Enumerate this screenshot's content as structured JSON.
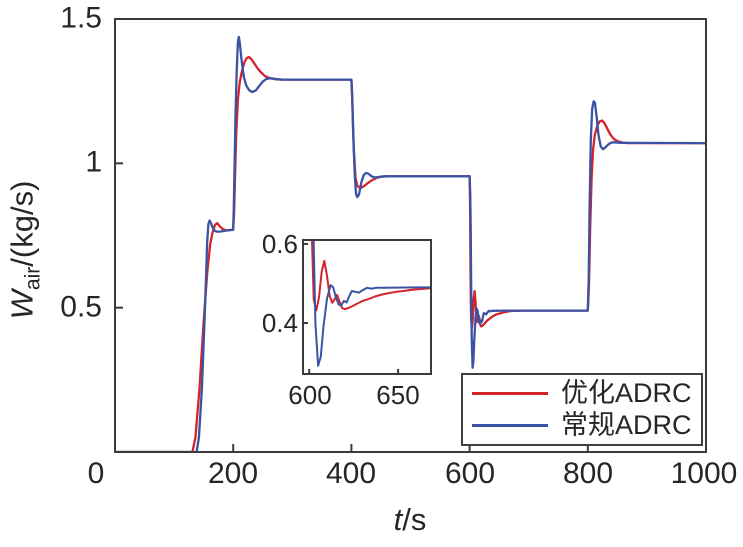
{
  "figure": {
    "xlabel": {
      "symbol": "t",
      "rest": "/s"
    },
    "ylabel": {
      "symbol": "W",
      "sub": "air",
      "rest": "/(kg/s)"
    },
    "x_ticks_display": [
      "0",
      "200",
      "400",
      "600",
      "800",
      "1000"
    ],
    "y_ticks_display": [
      "1.5",
      "1",
      "0.5"
    ],
    "frame_color": "#3b3b3b",
    "text_color": "#262626",
    "background": "#ffffff"
  },
  "inset_labels": {
    "x_ticks_display": [
      "600",
      "650"
    ],
    "y_ticks_display": [
      "0.6",
      "0.4"
    ]
  },
  "legend": {
    "items": [
      {
        "label": "优化ADRC",
        "color": "#d3242c"
      },
      {
        "label": "常规ADRC",
        "color": "#3a53a4"
      }
    ]
  },
  "chart_data": {
    "type": "line",
    "title": "",
    "xlabel": "t/s",
    "ylabel": "W_air/(kg/s)",
    "xlim": [
      0,
      1000
    ],
    "ylim": [
      0,
      1.5
    ],
    "x_ticks": [
      0,
      200,
      400,
      600,
      800,
      1000
    ],
    "y_ticks": [
      0.5,
      1,
      1.5
    ],
    "grid": false,
    "legend_position": "lower right",
    "inset": {
      "description": "zoomed view of the t=600 step response",
      "xlim": [
        596.5,
        668.5
      ],
      "ylim": [
        0.271,
        0.61
      ],
      "x_ticks": [
        600,
        650
      ],
      "y_ticks": [
        0.4,
        0.6
      ]
    },
    "series": [
      {
        "name": "优化ADRC",
        "color": "#d3242c",
        "points": [
          [
            0,
            0
          ],
          [
            131,
            0
          ],
          [
            136,
            0.05
          ],
          [
            143,
            0.22
          ],
          [
            150,
            0.45
          ],
          [
            156,
            0.62
          ],
          [
            161,
            0.72
          ],
          [
            165,
            0.76
          ],
          [
            169,
            0.786
          ],
          [
            173,
            0.793
          ],
          [
            177,
            0.783
          ],
          [
            182,
            0.772
          ],
          [
            188,
            0.768
          ],
          [
            194,
            0.769
          ],
          [
            200,
            0.77
          ],
          [
            201.5,
            0.83
          ],
          [
            203,
            0.95
          ],
          [
            205,
            1.1
          ],
          [
            208,
            1.22
          ],
          [
            211,
            1.28
          ],
          [
            215,
            1.322
          ],
          [
            219,
            1.35
          ],
          [
            223,
            1.365
          ],
          [
            227,
            1.368
          ],
          [
            231,
            1.36
          ],
          [
            236,
            1.345
          ],
          [
            241,
            1.33
          ],
          [
            247,
            1.315
          ],
          [
            254,
            1.302
          ],
          [
            262,
            1.295
          ],
          [
            272,
            1.291
          ],
          [
            285,
            1.29
          ],
          [
            400,
            1.29
          ],
          [
            401.5,
            1.22
          ],
          [
            404,
            1.05
          ],
          [
            407,
            0.95
          ],
          [
            410,
            0.922
          ],
          [
            413,
            0.917
          ],
          [
            417,
            0.916
          ],
          [
            422,
            0.922
          ],
          [
            428,
            0.932
          ],
          [
            435,
            0.942
          ],
          [
            443,
            0.95
          ],
          [
            452,
            0.954
          ],
          [
            462,
            0.955
          ],
          [
            600,
            0.955
          ],
          [
            600.8,
            0.85
          ],
          [
            601.5,
            0.62
          ],
          [
            602.5,
            0.46
          ],
          [
            604,
            0.432
          ],
          [
            605.5,
            0.465
          ],
          [
            607,
            0.53
          ],
          [
            608.5,
            0.557
          ],
          [
            610,
            0.52
          ],
          [
            611.5,
            0.468
          ],
          [
            613,
            0.451
          ],
          [
            614.5,
            0.462
          ],
          [
            615.7,
            0.471
          ],
          [
            617,
            0.455
          ],
          [
            618.5,
            0.438
          ],
          [
            620,
            0.435
          ],
          [
            622,
            0.438
          ],
          [
            624.5,
            0.443
          ],
          [
            627,
            0.449
          ],
          [
            630,
            0.456
          ],
          [
            633.5,
            0.461
          ],
          [
            637,
            0.467
          ],
          [
            641,
            0.472
          ],
          [
            645,
            0.476
          ],
          [
            649,
            0.479
          ],
          [
            653,
            0.481
          ],
          [
            658,
            0.484
          ],
          [
            663,
            0.486
          ],
          [
            668,
            0.488
          ],
          [
            676,
            0.489
          ],
          [
            690,
            0.49
          ],
          [
            800,
            0.49
          ],
          [
            802,
            0.58
          ],
          [
            804,
            0.78
          ],
          [
            806.5,
            0.95
          ],
          [
            809,
            1.05
          ],
          [
            812,
            1.1
          ],
          [
            816,
            1.13
          ],
          [
            820,
            1.145
          ],
          [
            824,
            1.148
          ],
          [
            828,
            1.14
          ],
          [
            833,
            1.12
          ],
          [
            838,
            1.1
          ],
          [
            844,
            1.085
          ],
          [
            850,
            1.077
          ],
          [
            858,
            1.072
          ],
          [
            868,
            1.07
          ],
          [
            1000,
            1.07
          ]
        ]
      },
      {
        "name": "常规ADRC",
        "color": "#3a53a4",
        "points": [
          [
            0,
            0
          ],
          [
            138,
            0
          ],
          [
            142,
            0.05
          ],
          [
            147,
            0.22
          ],
          [
            152,
            0.48
          ],
          [
            156,
            0.73
          ],
          [
            158,
            0.79
          ],
          [
            160,
            0.802
          ],
          [
            162,
            0.795
          ],
          [
            165,
            0.778
          ],
          [
            169,
            0.766
          ],
          [
            173,
            0.763
          ],
          [
            179,
            0.764
          ],
          [
            188,
            0.767
          ],
          [
            200,
            0.77
          ],
          [
            201,
            0.85
          ],
          [
            202.5,
            1.02
          ],
          [
            204,
            1.18
          ],
          [
            206,
            1.32
          ],
          [
            208,
            1.42
          ],
          [
            209.5,
            1.438
          ],
          [
            211,
            1.42
          ],
          [
            214,
            1.36
          ],
          [
            218,
            1.3
          ],
          [
            222,
            1.27
          ],
          [
            227,
            1.253
          ],
          [
            232,
            1.247
          ],
          [
            238,
            1.252
          ],
          [
            244,
            1.268
          ],
          [
            250,
            1.283
          ],
          [
            256,
            1.292
          ],
          [
            263,
            1.295
          ],
          [
            272,
            1.292
          ],
          [
            282,
            1.29
          ],
          [
            400,
            1.29
          ],
          [
            401,
            1.25
          ],
          [
            403,
            1.1
          ],
          [
            406,
            0.95
          ],
          [
            408,
            0.893
          ],
          [
            410,
            0.883
          ],
          [
            413,
            0.893
          ],
          [
            417,
            0.935
          ],
          [
            421,
            0.96
          ],
          [
            425,
            0.967
          ],
          [
            429,
            0.964
          ],
          [
            434,
            0.955
          ],
          [
            440,
            0.951
          ],
          [
            447,
            0.953
          ],
          [
            455,
            0.955
          ],
          [
            600,
            0.955
          ],
          [
            601,
            0.9
          ],
          [
            601.8,
            0.78
          ],
          [
            602.5,
            0.6
          ],
          [
            603.5,
            0.4
          ],
          [
            605,
            0.292
          ],
          [
            606.5,
            0.315
          ],
          [
            608,
            0.39
          ],
          [
            610,
            0.462
          ],
          [
            612,
            0.496
          ],
          [
            613.5,
            0.49
          ],
          [
            615,
            0.465
          ],
          [
            616.5,
            0.447
          ],
          [
            618,
            0.444
          ],
          [
            619.5,
            0.456
          ],
          [
            621,
            0.452
          ],
          [
            622.5,
            0.468
          ],
          [
            624,
            0.481
          ],
          [
            626,
            0.479
          ],
          [
            628,
            0.477
          ],
          [
            630,
            0.483
          ],
          [
            632.5,
            0.489
          ],
          [
            635,
            0.487
          ],
          [
            638,
            0.489
          ],
          [
            643,
            0.489
          ],
          [
            660,
            0.49
          ],
          [
            800,
            0.49
          ],
          [
            801.5,
            0.6
          ],
          [
            803,
            0.85
          ],
          [
            805,
            1.08
          ],
          [
            807.5,
            1.19
          ],
          [
            810,
            1.215
          ],
          [
            812,
            1.21
          ],
          [
            815,
            1.16
          ],
          [
            818,
            1.1
          ],
          [
            822,
            1.058
          ],
          [
            826,
            1.049
          ],
          [
            830,
            1.056
          ],
          [
            835,
            1.066
          ],
          [
            840,
            1.072
          ],
          [
            846,
            1.073
          ],
          [
            855,
            1.071
          ],
          [
            1000,
            1.07
          ]
        ]
      }
    ]
  }
}
